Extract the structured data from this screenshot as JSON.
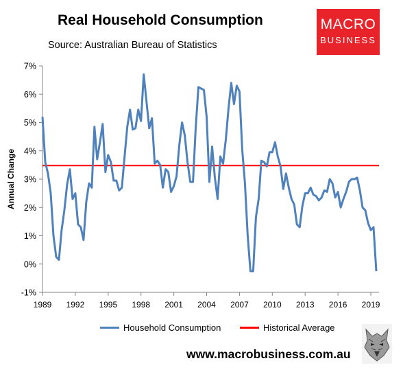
{
  "header": {
    "title": "Real Household Consumption",
    "subtitle": "Source: Australian Bureau of Statistics"
  },
  "logo": {
    "line1": "MACRO",
    "line2": "BUSINESS"
  },
  "footer": {
    "url": "www.macrobusiness.com.au"
  },
  "chart_data": {
    "type": "line",
    "xlabel": "",
    "ylabel": "Annual Change",
    "xlim": [
      1989,
      2019.75
    ],
    "ylim": [
      -1,
      7
    ],
    "x_ticks": [
      "1989",
      "1992",
      "1995",
      "1998",
      "2001",
      "2004",
      "2007",
      "2010",
      "2013",
      "2016",
      "2019"
    ],
    "y_ticks": [
      "-1%",
      "0%",
      "1%",
      "2%",
      "3%",
      "4%",
      "5%",
      "6%",
      "7%"
    ],
    "grid": false,
    "legend_position": "bottom",
    "colors": {
      "consumption": "#4f81bd",
      "average": "#ff0000"
    },
    "series": [
      {
        "name": "Household Consumption",
        "x": [
          1989.0,
          1989.25,
          1989.5,
          1989.75,
          1990.0,
          1990.25,
          1990.5,
          1990.75,
          1991.0,
          1991.25,
          1991.5,
          1991.75,
          1992.0,
          1992.25,
          1992.5,
          1992.75,
          1993.0,
          1993.25,
          1993.5,
          1993.75,
          1994.0,
          1994.25,
          1994.5,
          1994.75,
          1995.0,
          1995.25,
          1995.5,
          1995.75,
          1996.0,
          1996.25,
          1996.5,
          1996.75,
          1997.0,
          1997.25,
          1997.5,
          1997.75,
          1998.0,
          1998.25,
          1998.5,
          1998.75,
          1999.0,
          1999.25,
          1999.5,
          1999.75,
          2000.0,
          2000.25,
          2000.5,
          2000.75,
          2001.0,
          2001.25,
          2001.5,
          2001.75,
          2002.0,
          2002.25,
          2002.5,
          2002.75,
          2003.0,
          2003.25,
          2003.5,
          2003.75,
          2004.0,
          2004.25,
          2004.5,
          2004.75,
          2005.0,
          2005.25,
          2005.5,
          2005.75,
          2006.0,
          2006.25,
          2006.5,
          2006.75,
          2007.0,
          2007.25,
          2007.5,
          2007.75,
          2008.0,
          2008.25,
          2008.5,
          2008.75,
          2009.0,
          2009.25,
          2009.5,
          2009.75,
          2010.0,
          2010.25,
          2010.5,
          2010.75,
          2011.0,
          2011.25,
          2011.5,
          2011.75,
          2012.0,
          2012.25,
          2012.5,
          2012.75,
          2013.0,
          2013.25,
          2013.5,
          2013.75,
          2014.0,
          2014.25,
          2014.5,
          2014.75,
          2015.0,
          2015.25,
          2015.5,
          2015.75,
          2016.0,
          2016.25,
          2016.5,
          2016.75,
          2017.0,
          2017.25,
          2017.5,
          2017.75,
          2018.0,
          2018.25,
          2018.5,
          2018.75,
          2019.0,
          2019.25,
          2019.5
        ],
        "values": [
          5.2,
          3.6,
          3.2,
          2.5,
          1.0,
          0.25,
          0.15,
          1.2,
          1.9,
          2.8,
          3.35,
          2.3,
          2.5,
          1.4,
          1.3,
          0.85,
          2.2,
          2.85,
          2.7,
          4.85,
          3.7,
          4.3,
          4.95,
          3.25,
          3.85,
          3.6,
          2.95,
          2.95,
          2.6,
          2.7,
          3.8,
          4.85,
          5.45,
          4.75,
          4.8,
          5.45,
          5.05,
          6.7,
          5.75,
          4.8,
          5.15,
          3.55,
          3.65,
          3.5,
          2.7,
          3.35,
          3.25,
          2.55,
          2.75,
          3.1,
          4.2,
          5.0,
          4.55,
          3.6,
          2.9,
          2.9,
          4.8,
          6.25,
          6.2,
          6.15,
          5.2,
          2.9,
          4.15,
          3.05,
          2.3,
          3.8,
          3.55,
          4.4,
          5.5,
          6.4,
          5.65,
          6.3,
          6.1,
          4.05,
          2.85,
          1.0,
          -0.25,
          -0.25,
          1.65,
          2.3,
          3.65,
          3.6,
          3.45,
          3.95,
          3.95,
          4.3,
          3.8,
          3.45,
          2.65,
          3.2,
          2.7,
          2.3,
          2.1,
          1.4,
          1.3,
          2.05,
          2.5,
          2.5,
          2.7,
          2.45,
          2.4,
          2.25,
          2.35,
          2.6,
          2.55,
          3.0,
          2.85,
          2.35,
          2.55,
          2.0,
          2.3,
          2.55,
          2.9,
          3.0,
          3.0,
          3.05,
          2.6,
          2.0,
          1.9,
          1.45,
          1.2,
          1.3,
          -0.25
        ]
      },
      {
        "name": "Historical Average",
        "x": [
          1989.0,
          2019.75
        ],
        "values": [
          3.48,
          3.48
        ]
      }
    ]
  }
}
